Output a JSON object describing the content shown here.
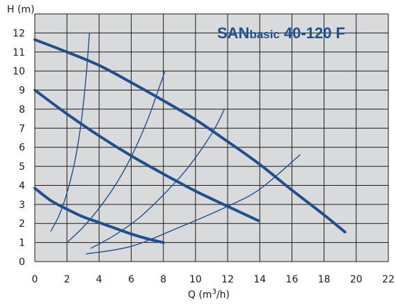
{
  "chart_data": {
    "type": "line",
    "title_main": "SAN",
    "title_sub": "basic",
    "title_model": "40-120 F",
    "xlabel_base": "Q (m",
    "xlabel_sup": "3",
    "xlabel_tail": "/h)",
    "ylabel": "H (m)",
    "xlim": [
      0,
      22
    ],
    "ylim": [
      0,
      13
    ],
    "x_ticks": [
      0,
      2,
      4,
      6,
      8,
      10,
      12,
      14,
      16,
      18,
      20,
      22
    ],
    "y_ticks": [
      0,
      1,
      2,
      3,
      4,
      5,
      6,
      7,
      8,
      9,
      10,
      11,
      12
    ],
    "grid": true,
    "colors": {
      "plot_bg": "#d9dadb",
      "grid": "#1a1a1a",
      "curve": "#1f4f8c",
      "title": "#1f4f8c"
    },
    "pump_curves": [
      {
        "points": [
          [
            0,
            11.65
          ],
          [
            2,
            11.0
          ],
          [
            4,
            10.3
          ],
          [
            6,
            9.4
          ],
          [
            8,
            8.45
          ],
          [
            10,
            7.45
          ],
          [
            12,
            6.3
          ],
          [
            14,
            5.1
          ],
          [
            16,
            3.75
          ],
          [
            18,
            2.45
          ],
          [
            19.3,
            1.55
          ]
        ]
      },
      {
        "points": [
          [
            0,
            9.0
          ],
          [
            2,
            7.75
          ],
          [
            4,
            6.6
          ],
          [
            6,
            5.55
          ],
          [
            8,
            4.6
          ],
          [
            10,
            3.7
          ],
          [
            12,
            2.9
          ],
          [
            13.9,
            2.15
          ]
        ]
      },
      {
        "points": [
          [
            0,
            3.85
          ],
          [
            1,
            3.2
          ],
          [
            2,
            2.75
          ],
          [
            3,
            2.35
          ],
          [
            4,
            2.05
          ],
          [
            5,
            1.75
          ],
          [
            6,
            1.45
          ],
          [
            7,
            1.2
          ],
          [
            8,
            1.0
          ]
        ]
      }
    ],
    "system_curves": [
      {
        "points": [
          [
            1,
            1.6
          ],
          [
            1.5,
            2.4
          ],
          [
            2,
            3.6
          ],
          [
            2.5,
            5.3
          ],
          [
            2.9,
            7.4
          ],
          [
            3.2,
            9.8
          ],
          [
            3.4,
            12.0
          ]
        ]
      },
      {
        "points": [
          [
            2,
            1.0
          ],
          [
            3,
            1.8
          ],
          [
            4,
            2.8
          ],
          [
            5,
            4.0
          ],
          [
            6,
            5.5
          ],
          [
            7,
            7.4
          ],
          [
            7.6,
            8.8
          ],
          [
            8.1,
            10.0
          ]
        ]
      },
      {
        "points": [
          [
            3.5,
            0.7
          ],
          [
            5,
            1.4
          ],
          [
            6.5,
            2.3
          ],
          [
            8,
            3.5
          ],
          [
            9.5,
            4.9
          ],
          [
            11,
            6.7
          ],
          [
            11.8,
            8.0
          ]
        ]
      },
      {
        "points": [
          [
            3.2,
            0.4
          ],
          [
            6,
            0.8
          ],
          [
            9,
            1.8
          ],
          [
            12,
            2.9
          ],
          [
            14,
            3.8
          ],
          [
            16.5,
            5.6
          ]
        ]
      }
    ]
  }
}
